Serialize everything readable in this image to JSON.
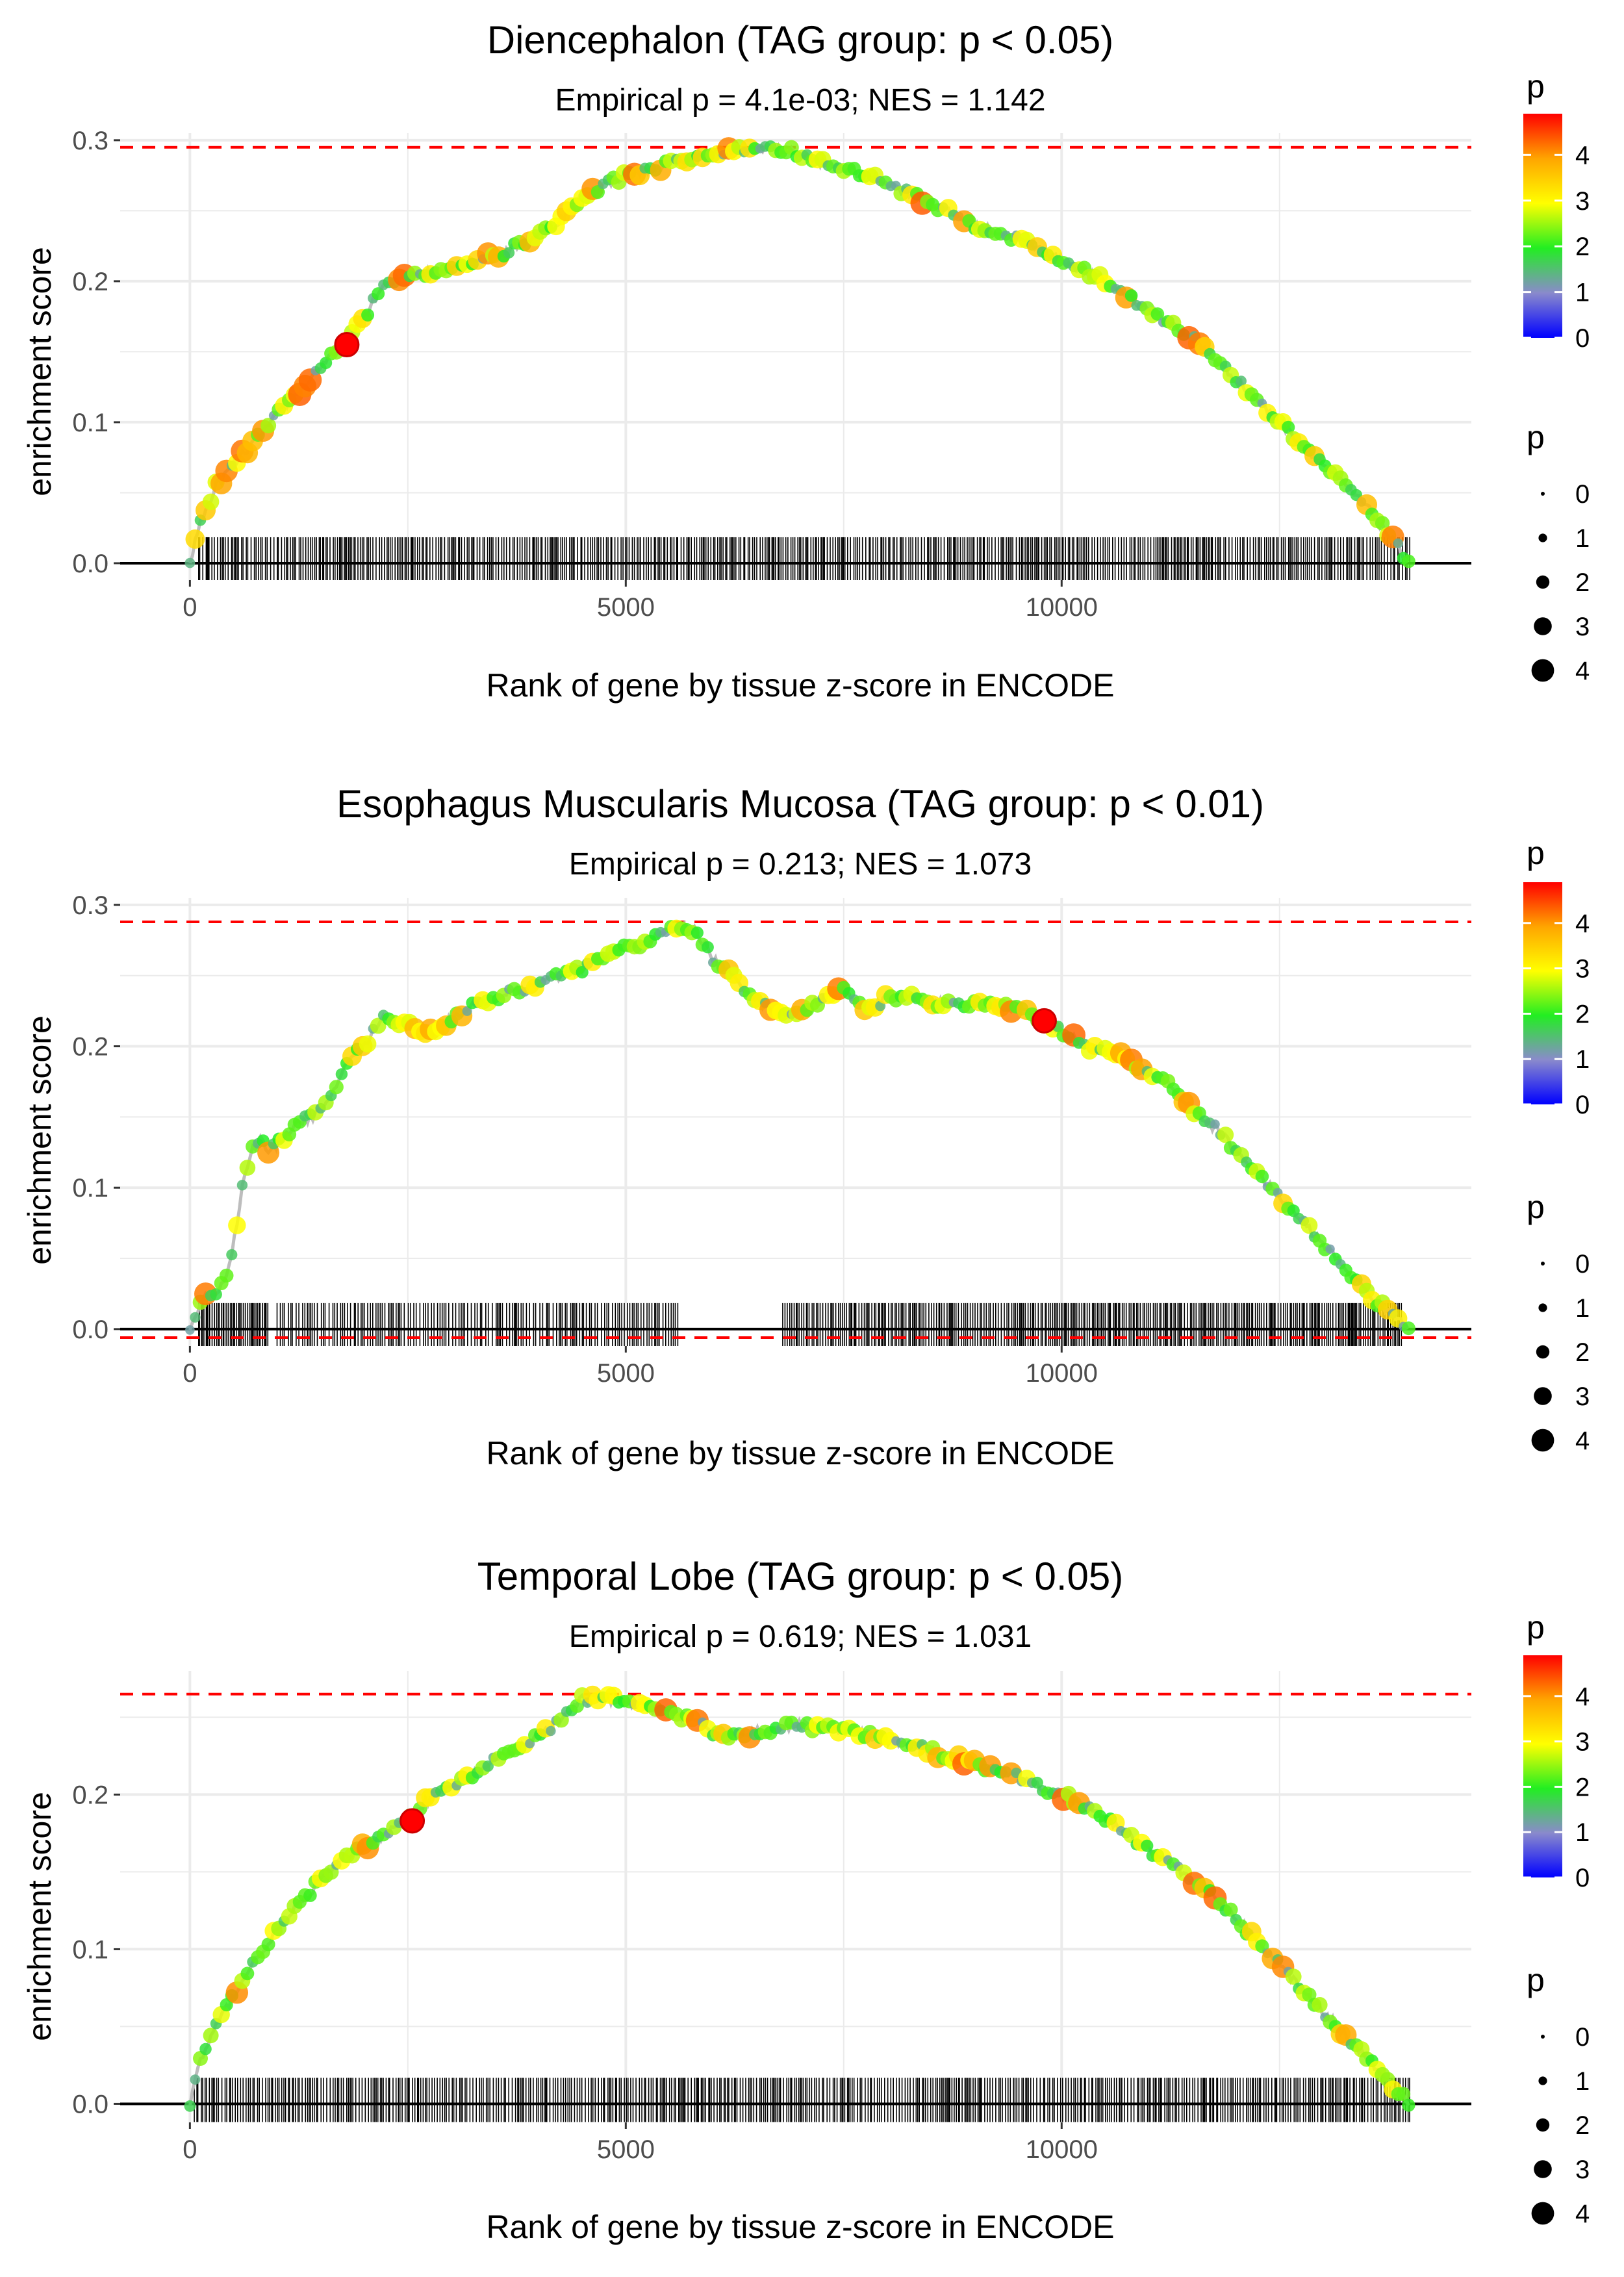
{
  "colors": {
    "grid": "#ebebeb",
    "curve": "#bdbdbd",
    "max_line": "#ff0000",
    "zero_line": "#000000",
    "axis_text": "#4d4d4d",
    "text": "#000000",
    "gradient": [
      "#0000ff",
      "#8a8acc",
      "#22ee22",
      "#ffff00",
      "#ffa500",
      "#ff0000"
    ]
  },
  "chart_data": [
    {
      "type": "line",
      "title": "Diencephalon (TAG group: p < 0.05)",
      "subtitle": "Empirical p = 4.1e-03; NES = 1.142",
      "xlabel": "Rank of gene by tissue z-score in ENCODE",
      "ylabel": "enrichment score",
      "xlim": [
        -800,
        14700
      ],
      "ylim": [
        -0.012,
        0.305
      ],
      "x_ticks": [
        0,
        5000,
        10000
      ],
      "x_tick_labels": [
        "0",
        "5000",
        "10000"
      ],
      "y_ticks": [
        0.0,
        0.1,
        0.2,
        0.3
      ],
      "y_tick_labels": [
        "0.0",
        "0.1",
        "0.2",
        "0.3"
      ],
      "max_es": 0.295,
      "min_es": null,
      "highlight": {
        "x": 1800,
        "y": 0.155
      },
      "curve": {
        "x": [
          0,
          100,
          300,
          500,
          800,
          1000,
          1300,
          1500,
          1800,
          2000,
          2200,
          2500,
          2800,
          3000,
          3300,
          3600,
          3900,
          4200,
          4500,
          4800,
          5000,
          5300,
          5600,
          6000,
          6300,
          6600,
          6900,
          7200,
          7500,
          8000,
          8500,
          9000,
          9500,
          10000,
          10500,
          11000,
          11500,
          12000,
          12500,
          13000,
          13500,
          14000
        ],
        "y": [
          0.0,
          0.025,
          0.055,
          0.07,
          0.09,
          0.105,
          0.125,
          0.14,
          0.155,
          0.175,
          0.195,
          0.205,
          0.207,
          0.21,
          0.215,
          0.22,
          0.23,
          0.24,
          0.26,
          0.27,
          0.275,
          0.28,
          0.285,
          0.29,
          0.293,
          0.295,
          0.292,
          0.285,
          0.28,
          0.27,
          0.255,
          0.24,
          0.23,
          0.215,
          0.2,
          0.18,
          0.16,
          0.13,
          0.1,
          0.07,
          0.04,
          0.0
        ]
      },
      "gene_hits": {
        "segments": [
          [
            100,
            14000,
            25
          ]
        ]
      }
    },
    {
      "type": "line",
      "title": "Esophagus Muscularis Mucosa (TAG group: p < 0.01)",
      "subtitle": "Empirical p = 0.213; NES = 1.073",
      "xlabel": "Rank of gene by tissue z-score in ENCODE",
      "ylabel": "enrichment score",
      "xlim": [
        -800,
        14700
      ],
      "ylim": [
        -0.012,
        0.305
      ],
      "x_ticks": [
        0,
        5000,
        10000
      ],
      "x_tick_labels": [
        "0",
        "5000",
        "10000"
      ],
      "y_ticks": [
        0.0,
        0.1,
        0.2,
        0.3
      ],
      "y_tick_labels": [
        "0.0",
        "0.1",
        "0.2",
        "0.3"
      ],
      "max_es": 0.288,
      "min_es": -0.006,
      "highlight": {
        "x": 9800,
        "y": 0.218
      },
      "curve": {
        "x": [
          0,
          100,
          200,
          300,
          400,
          500,
          600,
          700,
          800,
          900,
          1000,
          1200,
          1400,
          1600,
          1800,
          2000,
          2200,
          2500,
          2800,
          3000,
          3300,
          3500,
          3800,
          4000,
          4300,
          4500,
          4800,
          5000,
          5300,
          5600,
          5800,
          6000,
          6300,
          6600,
          6900,
          7200,
          7500,
          7800,
          8000,
          8300,
          8500,
          8800,
          9000,
          9300,
          9600,
          9800,
          10000,
          10300,
          10600,
          10900,
          11200,
          11500,
          11800,
          12100,
          12400,
          12700,
          13000,
          13300,
          13600,
          14000
        ],
        "y": [
          0.0,
          0.015,
          0.025,
          0.025,
          0.035,
          0.06,
          0.1,
          0.125,
          0.135,
          0.125,
          0.13,
          0.145,
          0.15,
          0.16,
          0.19,
          0.2,
          0.22,
          0.215,
          0.21,
          0.22,
          0.23,
          0.235,
          0.24,
          0.245,
          0.25,
          0.255,
          0.265,
          0.27,
          0.275,
          0.285,
          0.282,
          0.262,
          0.245,
          0.228,
          0.222,
          0.232,
          0.24,
          0.225,
          0.235,
          0.235,
          0.232,
          0.228,
          0.23,
          0.228,
          0.225,
          0.218,
          0.21,
          0.2,
          0.195,
          0.185,
          0.175,
          0.155,
          0.14,
          0.12,
          0.1,
          0.08,
          0.06,
          0.04,
          0.02,
          0.0
        ]
      },
      "gene_hits": {
        "segments": [
          [
            100,
            900,
            18
          ],
          [
            1000,
            5600,
            30
          ],
          [
            6800,
            13900,
            22
          ]
        ]
      }
    },
    {
      "type": "line",
      "title": "Temporal Lobe (TAG group: p < 0.05)",
      "subtitle": "Empirical p = 0.619; NES = 1.031",
      "xlabel": "Rank of gene by tissue z-score in ENCODE",
      "ylabel": "enrichment score",
      "xlim": [
        -800,
        14700
      ],
      "ylim": [
        -0.012,
        0.28
      ],
      "x_ticks": [
        0,
        5000,
        10000
      ],
      "x_tick_labels": [
        "0",
        "5000",
        "10000"
      ],
      "y_ticks": [
        0.0,
        0.1,
        0.2
      ],
      "y_tick_labels": [
        "0.0",
        "0.1",
        "0.2"
      ],
      "max_es": 0.265,
      "min_es": null,
      "highlight": {
        "x": 2550,
        "y": 0.183
      },
      "curve": {
        "x": [
          0,
          100,
          300,
          600,
          900,
          1200,
          1500,
          1800,
          2100,
          2400,
          2700,
          3000,
          3300,
          3600,
          3900,
          4200,
          4500,
          4800,
          5100,
          5400,
          5700,
          6000,
          6300,
          6600,
          7000,
          7500,
          8000,
          8500,
          9000,
          9500,
          10000,
          10500,
          11000,
          11500,
          12000,
          12500,
          13000,
          13500,
          14000
        ],
        "y": [
          0.0,
          0.025,
          0.05,
          0.08,
          0.105,
          0.125,
          0.145,
          0.16,
          0.17,
          0.18,
          0.195,
          0.205,
          0.215,
          0.225,
          0.235,
          0.245,
          0.262,
          0.262,
          0.258,
          0.255,
          0.25,
          0.24,
          0.238,
          0.242,
          0.245,
          0.242,
          0.235,
          0.228,
          0.22,
          0.212,
          0.2,
          0.185,
          0.165,
          0.145,
          0.12,
          0.09,
          0.06,
          0.03,
          0.0
        ]
      },
      "gene_hits": {
        "segments": [
          [
            50,
            14000,
            25
          ]
        ]
      }
    }
  ],
  "legend": {
    "color_title": "p",
    "color_labels": [
      "4",
      "3",
      "2",
      "1",
      "0"
    ],
    "size_title": "p",
    "size_labels": [
      "0",
      "1",
      "2",
      "3",
      "4"
    ]
  }
}
